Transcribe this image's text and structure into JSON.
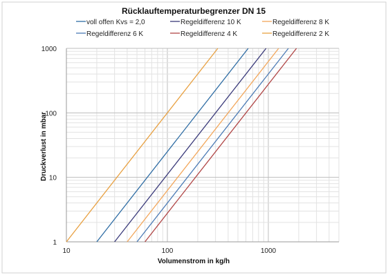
{
  "chart_data": {
    "type": "line",
    "title": "Rücklauftemperaturbegrenzer DN 15",
    "xlabel": "Volumenstrom in kg/h",
    "ylabel": "Druckverlust in mbar",
    "x_scale": "log",
    "y_scale": "log",
    "xlim": [
      10,
      5000
    ],
    "ylim": [
      1,
      1000
    ],
    "x_ticks": [
      10,
      100,
      1000
    ],
    "x_tick_labels": [
      "10",
      "100",
      "1000"
    ],
    "y_ticks": [
      1,
      10,
      100,
      1000
    ],
    "y_tick_labels": [
      "1",
      "10",
      "100",
      "1000"
    ],
    "grid": "major and minor",
    "legend_position": "top",
    "series": [
      {
        "name": "voll offen Kvs = 2,0",
        "color": "#2e6ca4",
        "points": [
          [
            20,
            1
          ],
          [
            632,
            1000
          ]
        ]
      },
      {
        "name": "Regeldifferenz 10 K",
        "color": "#3a3a7a",
        "points": [
          [
            30,
            1
          ],
          [
            950,
            1000
          ]
        ]
      },
      {
        "name": "Regeldifferenz 8  K",
        "color": "#f2a65a",
        "points": [
          [
            40,
            1
          ],
          [
            1265,
            1000
          ]
        ]
      },
      {
        "name": "Regeldifferenz 6 K",
        "color": "#4b7bb5",
        "points": [
          [
            50,
            1
          ],
          [
            1580,
            1000
          ]
        ]
      },
      {
        "name": "Regeldifferenz 4 K",
        "color": "#b04545",
        "points": [
          [
            60,
            1
          ],
          [
            1900,
            1000
          ]
        ]
      },
      {
        "name": "Regeldifferenz 2 K",
        "color": "#e8a040",
        "points": [
          [
            10,
            1
          ],
          [
            316,
            1000
          ]
        ]
      }
    ]
  }
}
